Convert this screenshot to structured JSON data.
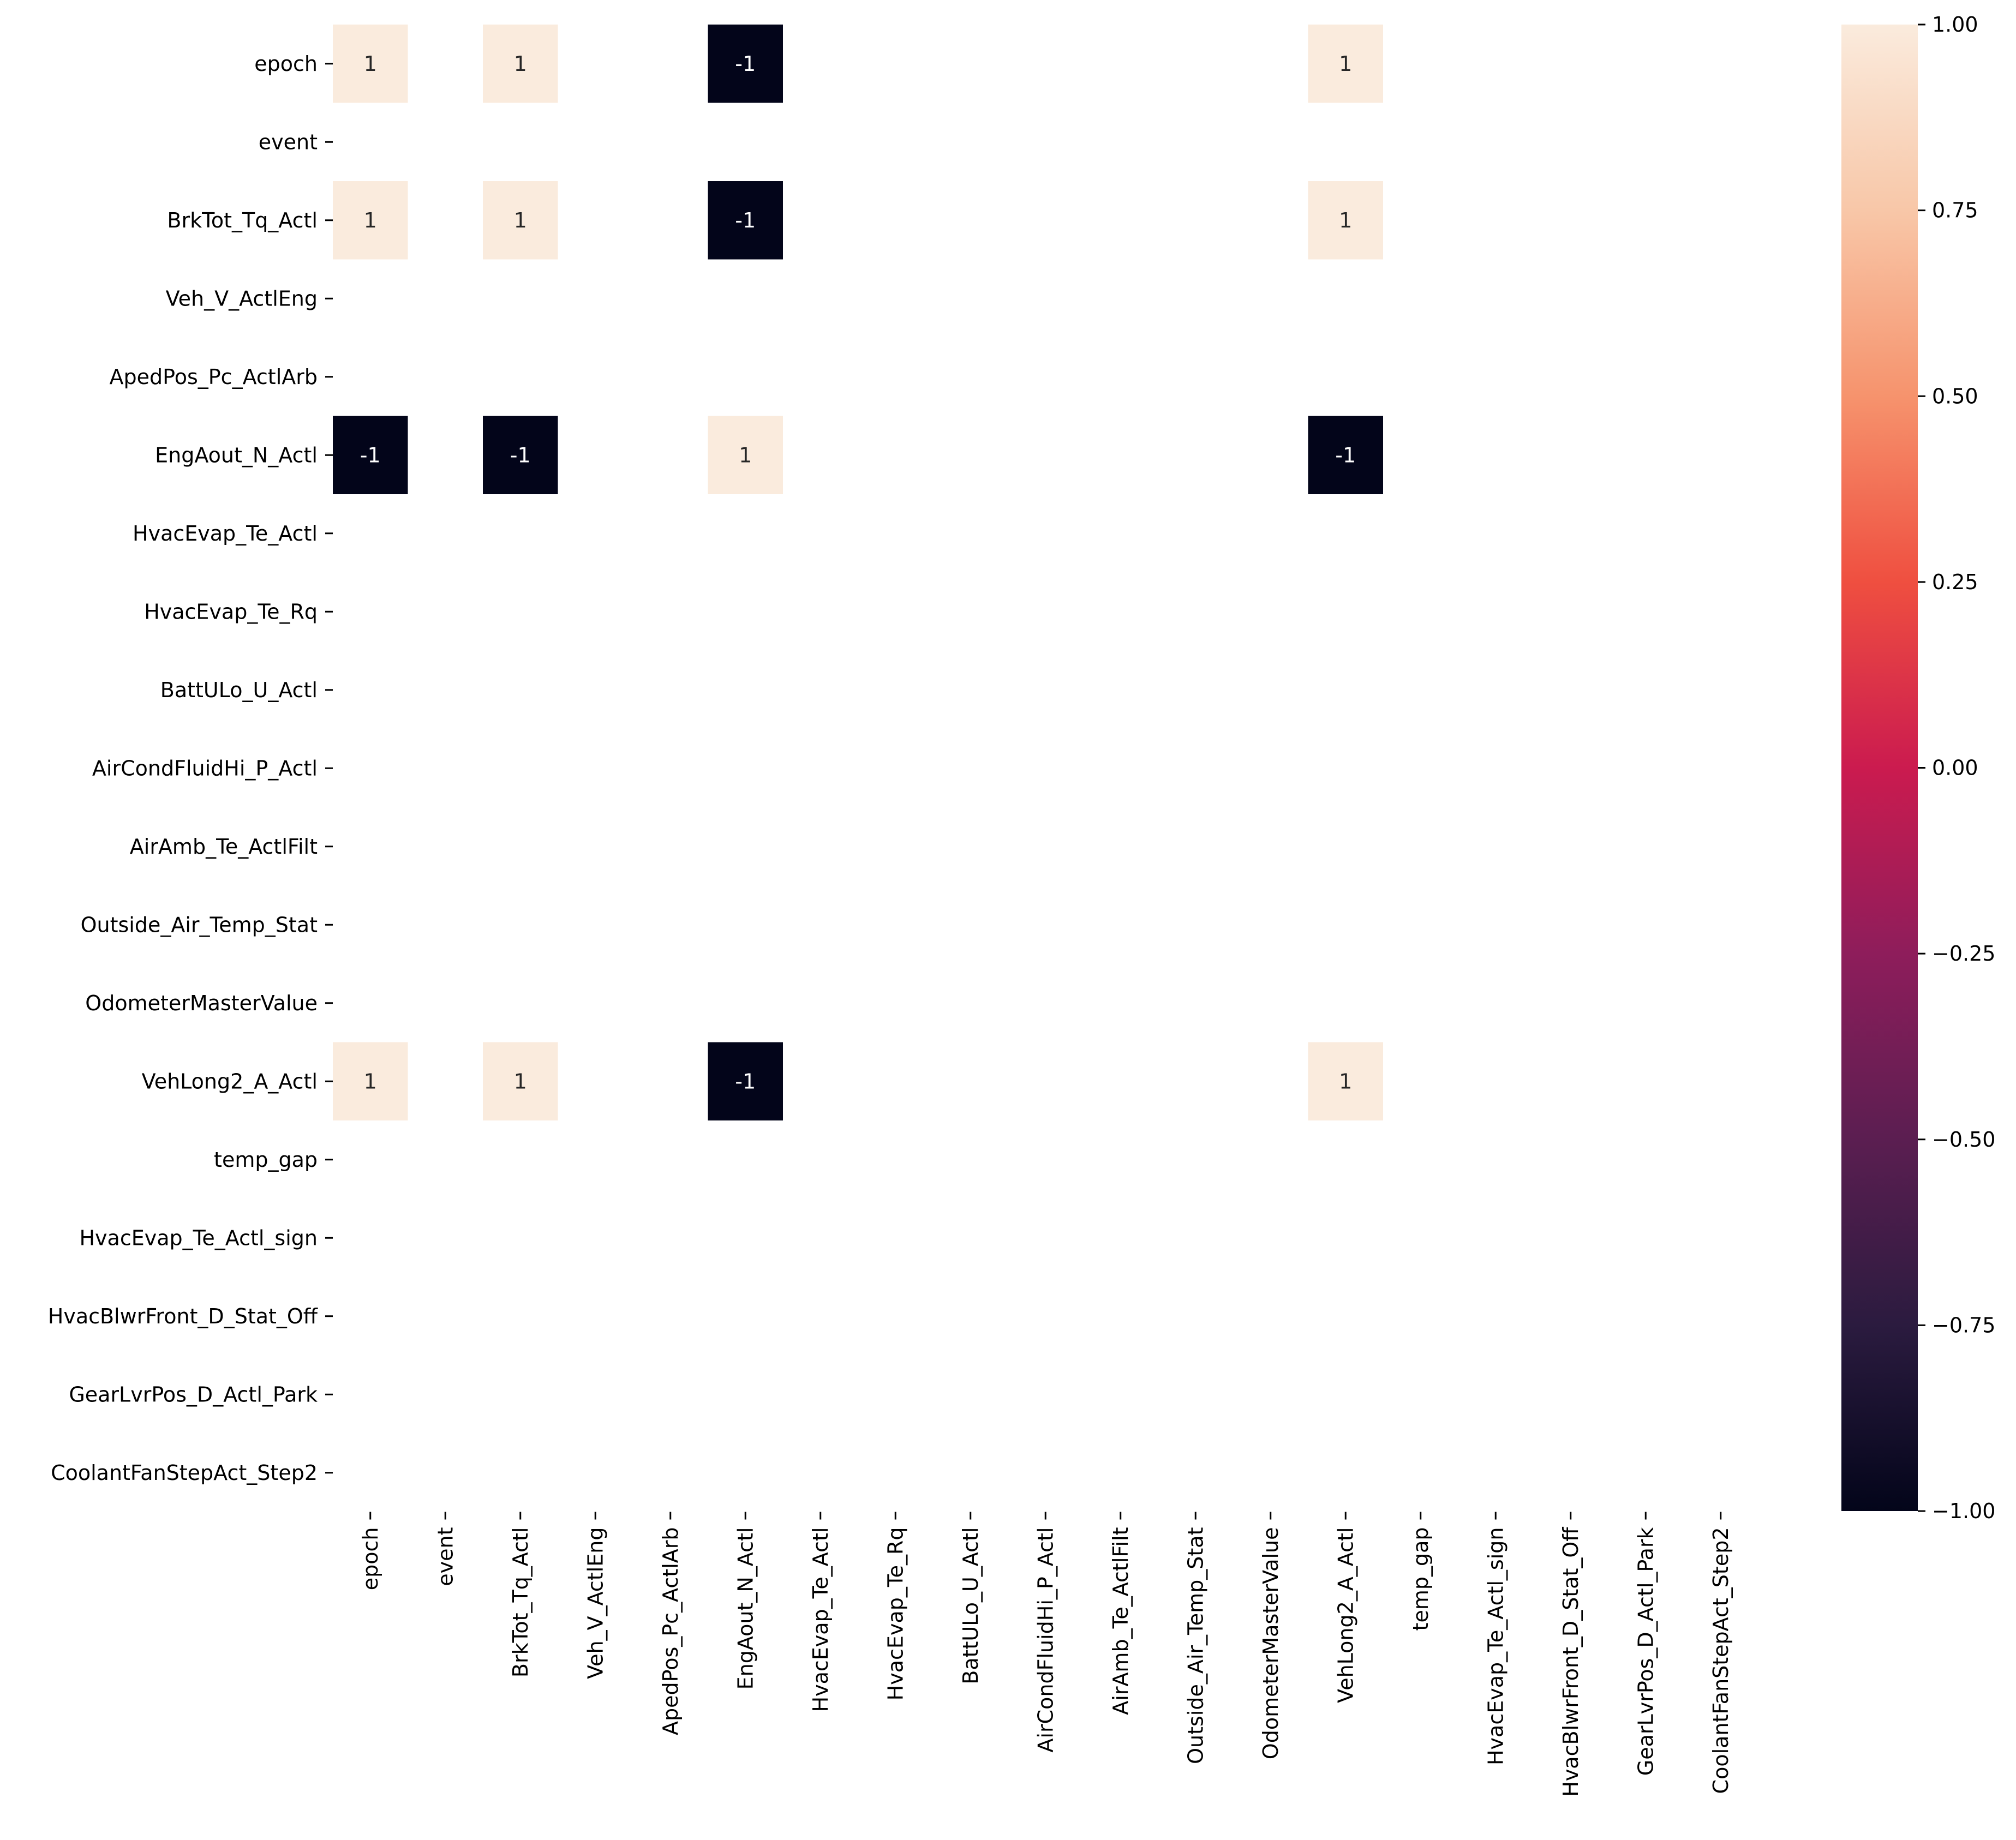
{
  "chart_data": {
    "type": "heatmap",
    "title": "",
    "xlabel": "",
    "ylabel": "",
    "labels": [
      "epoch",
      "event",
      "BrkTot_Tq_Actl",
      "Veh_V_ActlEng",
      "ApedPos_Pc_ActlArb",
      "EngAout_N_Actl",
      "HvacEvap_Te_Actl",
      "HvacEvap_Te_Rq",
      "BattULo_U_Actl",
      "AirCondFluidHi_P_Actl",
      "AirAmb_Te_ActlFilt",
      "Outside_Air_Temp_Stat",
      "OdometerMasterValue",
      "VehLong2_A_Actl",
      "temp_gap",
      "HvacEvap_Te_Actl_sign",
      "HvacBlwrFront_D_Stat_Off",
      "GearLvrPos_D_Actl_Park",
      "CoolantFanStepAct_Step2"
    ],
    "cells": [
      {
        "row": "epoch",
        "col": "epoch",
        "value": 1,
        "label": "1"
      },
      {
        "row": "epoch",
        "col": "BrkTot_Tq_Actl",
        "value": 1,
        "label": "1"
      },
      {
        "row": "epoch",
        "col": "EngAout_N_Actl",
        "value": -1,
        "label": "-1"
      },
      {
        "row": "epoch",
        "col": "VehLong2_A_Actl",
        "value": 1,
        "label": "1"
      },
      {
        "row": "BrkTot_Tq_Actl",
        "col": "epoch",
        "value": 1,
        "label": "1"
      },
      {
        "row": "BrkTot_Tq_Actl",
        "col": "BrkTot_Tq_Actl",
        "value": 1,
        "label": "1"
      },
      {
        "row": "BrkTot_Tq_Actl",
        "col": "EngAout_N_Actl",
        "value": -1,
        "label": "-1"
      },
      {
        "row": "BrkTot_Tq_Actl",
        "col": "VehLong2_A_Actl",
        "value": 1,
        "label": "1"
      },
      {
        "row": "EngAout_N_Actl",
        "col": "epoch",
        "value": -1,
        "label": "-1"
      },
      {
        "row": "EngAout_N_Actl",
        "col": "BrkTot_Tq_Actl",
        "value": -1,
        "label": "-1"
      },
      {
        "row": "EngAout_N_Actl",
        "col": "EngAout_N_Actl",
        "value": 1,
        "label": "1"
      },
      {
        "row": "EngAout_N_Actl",
        "col": "VehLong2_A_Actl",
        "value": -1,
        "label": "-1"
      },
      {
        "row": "VehLong2_A_Actl",
        "col": "epoch",
        "value": 1,
        "label": "1"
      },
      {
        "row": "VehLong2_A_Actl",
        "col": "BrkTot_Tq_Actl",
        "value": 1,
        "label": "1"
      },
      {
        "row": "VehLong2_A_Actl",
        "col": "EngAout_N_Actl",
        "value": -1,
        "label": "-1"
      },
      {
        "row": "VehLong2_A_Actl",
        "col": "VehLong2_A_Actl",
        "value": 1,
        "label": "1"
      }
    ],
    "colorbar": {
      "range": [
        -1.0,
        1.0
      ],
      "ticks": [
        -1.0,
        -0.75,
        -0.5,
        -0.25,
        0.0,
        0.25,
        0.5,
        0.75,
        1.0
      ],
      "tick_labels": [
        "−1.00",
        "−0.75",
        "−0.50",
        "−0.25",
        "0.00",
        "0.25",
        "0.50",
        "0.75",
        "1.00"
      ],
      "colormap": "rocket",
      "colors": [
        "#03051a",
        "#2b1b3f",
        "#5b1e51",
        "#8e1d5b",
        "#cb1b4f",
        "#ef4f40",
        "#f6936d",
        "#f8c7a8",
        "#faebdd"
      ]
    },
    "colors": {
      "positive_cell": "#faebdd",
      "negative_cell": "#03051a",
      "text_on_light": "#262626",
      "text_on_dark": "#ffffff",
      "axis": "#000000",
      "background": "#ffffff"
    },
    "grid": false,
    "legend": "colorbar-right"
  }
}
